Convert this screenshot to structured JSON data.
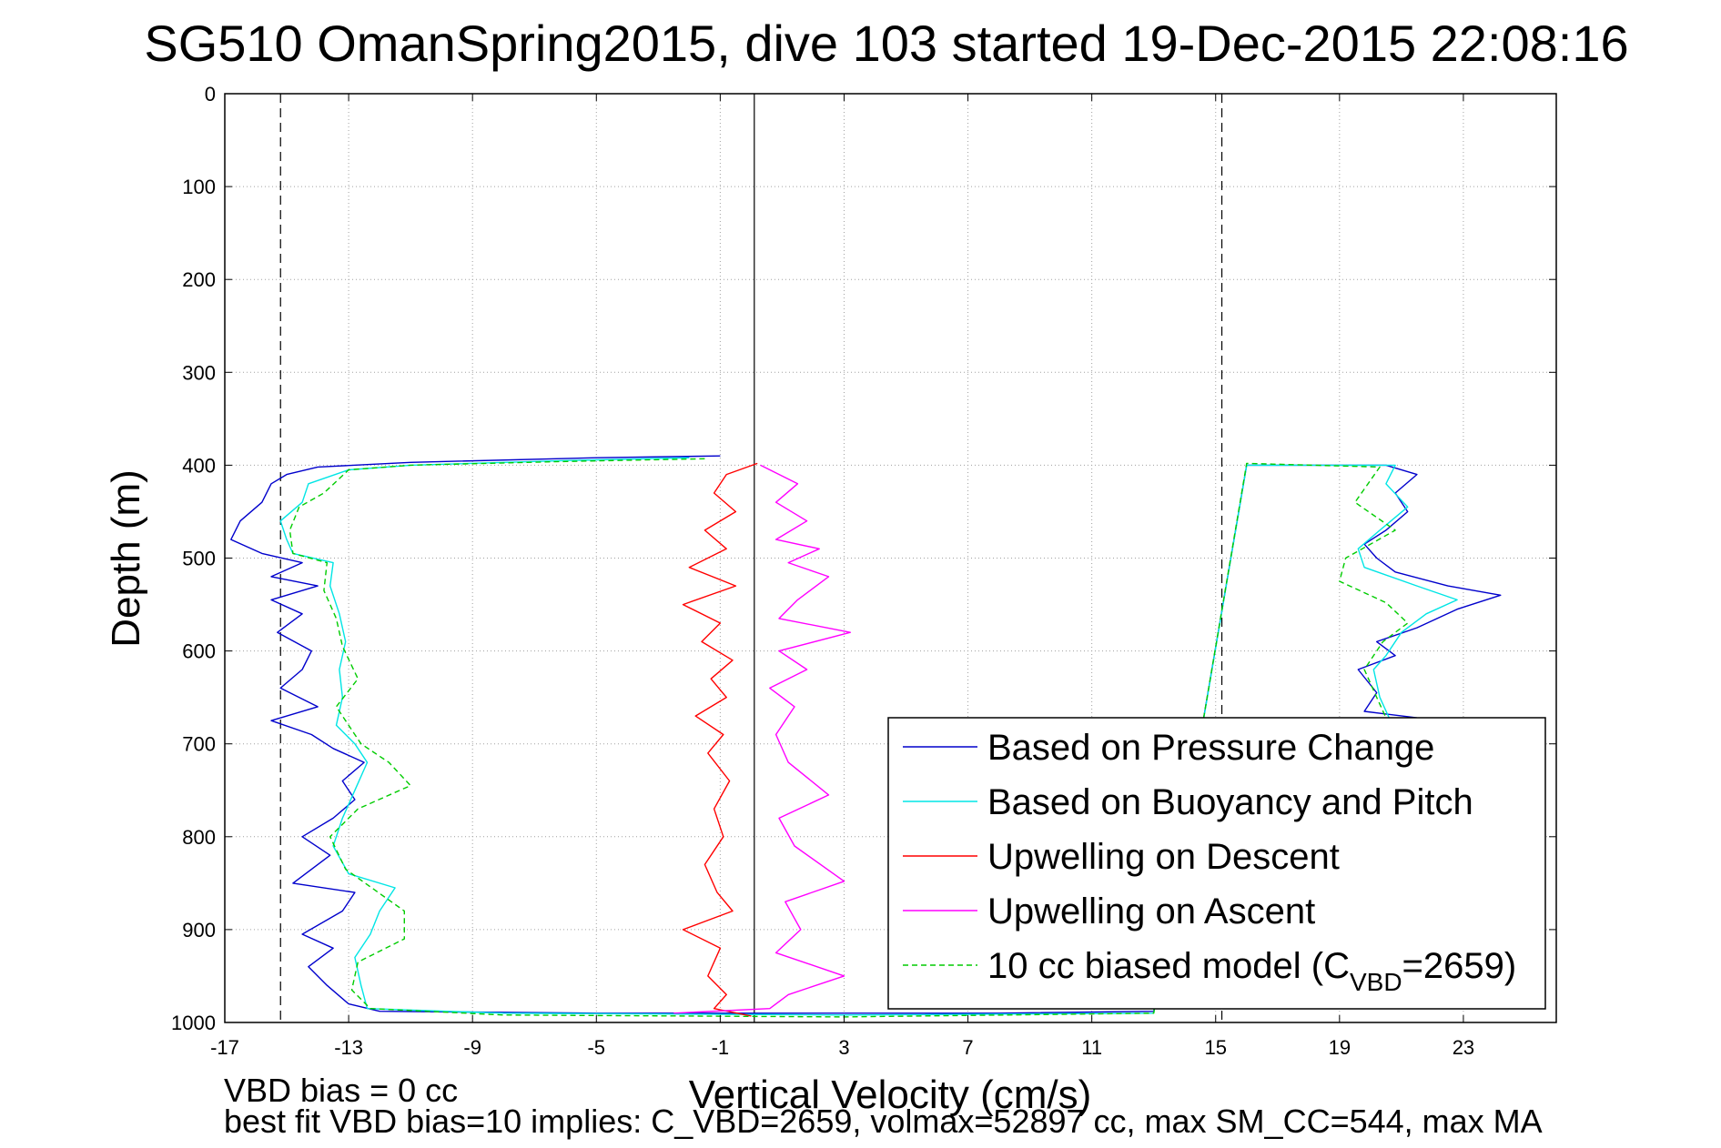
{
  "chart_data": {
    "type": "line",
    "title": "SG510 OmanSpring2015, dive 103 started 19-Dec-2015 22:08:16",
    "xlabel": "Vertical Velocity (cm/s)",
    "ylabel": "Depth (m)",
    "xlim": [
      -17,
      26
    ],
    "ylim": [
      0,
      1000
    ],
    "y_reversed": true,
    "xticks": [
      -17,
      -13,
      -9,
      -5,
      -1,
      3,
      7,
      11,
      15,
      19,
      23
    ],
    "yticks": [
      0,
      100,
      200,
      300,
      400,
      500,
      600,
      700,
      800,
      900,
      1000
    ],
    "grid": true,
    "legend_position": "lower-right",
    "reference_lines": [
      {
        "x": -15.2,
        "style": "dashed"
      },
      {
        "x": 0.1,
        "style": "solid"
      },
      {
        "x": 15.2,
        "style": "dashed"
      }
    ],
    "series": [
      {
        "name": "Based on Pressure Change",
        "color": "#0000cc",
        "style": "solid",
        "points": [
          [
            -1,
            390
          ],
          [
            -5,
            392
          ],
          [
            -11,
            397
          ],
          [
            -14,
            402
          ],
          [
            -15,
            410
          ],
          [
            -15.5,
            420
          ],
          [
            -15.8,
            440
          ],
          [
            -16.5,
            460
          ],
          [
            -16.8,
            480
          ],
          [
            -15.8,
            495
          ],
          [
            -14.5,
            505
          ],
          [
            -15.5,
            520
          ],
          [
            -14,
            530
          ],
          [
            -15.5,
            545
          ],
          [
            -14.5,
            560
          ],
          [
            -15.3,
            580
          ],
          [
            -14.2,
            600
          ],
          [
            -14.5,
            620
          ],
          [
            -15.2,
            640
          ],
          [
            -14,
            660
          ],
          [
            -15.5,
            675
          ],
          [
            -14.2,
            690
          ],
          [
            -13.5,
            705
          ],
          [
            -12.5,
            720
          ],
          [
            -13.2,
            740
          ],
          [
            -12.8,
            760
          ],
          [
            -13.5,
            780
          ],
          [
            -14.5,
            800
          ],
          [
            -13.6,
            820
          ],
          [
            -14.8,
            850
          ],
          [
            -12.8,
            860
          ],
          [
            -13.2,
            880
          ],
          [
            -14.5,
            905
          ],
          [
            -13.5,
            920
          ],
          [
            -14.3,
            940
          ],
          [
            -13.7,
            960
          ],
          [
            -13,
            980
          ],
          [
            -12,
            988
          ],
          [
            -5,
            990
          ],
          [
            8,
            990
          ],
          [
            13,
            988
          ],
          [
            16,
            400
          ],
          [
            20.5,
            400
          ],
          [
            21.5,
            410
          ],
          [
            20.8,
            430
          ],
          [
            21.2,
            450
          ],
          [
            20.5,
            470
          ],
          [
            19.8,
            485
          ],
          [
            20.2,
            500
          ],
          [
            20.8,
            515
          ],
          [
            22.5,
            530
          ],
          [
            24.2,
            540
          ],
          [
            22.8,
            555
          ],
          [
            21.5,
            575
          ],
          [
            20.2,
            590
          ],
          [
            20.8,
            605
          ],
          [
            19.6,
            620
          ],
          [
            20.2,
            645
          ],
          [
            19.8,
            665
          ],
          [
            21.5,
            672
          ]
        ]
      },
      {
        "name": "Based on Buoyancy and Pitch",
        "color": "#00e5e5",
        "style": "solid",
        "points": [
          [
            -2,
            392
          ],
          [
            -6,
            395
          ],
          [
            -11,
            400
          ],
          [
            -13,
            405
          ],
          [
            -14.3,
            420
          ],
          [
            -14.5,
            440
          ],
          [
            -15.2,
            460
          ],
          [
            -15,
            480
          ],
          [
            -14.8,
            495
          ],
          [
            -13.5,
            505
          ],
          [
            -13.6,
            530
          ],
          [
            -13.3,
            560
          ],
          [
            -13.1,
            590
          ],
          [
            -13.3,
            620
          ],
          [
            -13.2,
            650
          ],
          [
            -13.4,
            680
          ],
          [
            -12.8,
            700
          ],
          [
            -12.4,
            720
          ],
          [
            -12.8,
            750
          ],
          [
            -13.2,
            780
          ],
          [
            -13.5,
            810
          ],
          [
            -13,
            840
          ],
          [
            -11.5,
            855
          ],
          [
            -12,
            880
          ],
          [
            -12.3,
            905
          ],
          [
            -12.8,
            930
          ],
          [
            -12.6,
            960
          ],
          [
            -12.4,
            985
          ],
          [
            -8,
            990
          ],
          [
            3,
            992
          ],
          [
            13,
            990
          ],
          [
            16,
            400
          ],
          [
            20.8,
            400
          ],
          [
            20.5,
            420
          ],
          [
            21.2,
            445
          ],
          [
            20.3,
            470
          ],
          [
            19.6,
            490
          ],
          [
            19.8,
            510
          ],
          [
            21.5,
            530
          ],
          [
            22.8,
            545
          ],
          [
            21.8,
            560
          ],
          [
            21,
            580
          ],
          [
            20.5,
            605
          ],
          [
            20.1,
            620
          ],
          [
            20.3,
            650
          ],
          [
            20.6,
            672
          ]
        ]
      },
      {
        "name": "Upwelling on Descent",
        "color": "#ff0000",
        "style": "solid",
        "points": [
          [
            0.2,
            398
          ],
          [
            -0.8,
            410
          ],
          [
            -1.2,
            430
          ],
          [
            -0.5,
            450
          ],
          [
            -1.5,
            470
          ],
          [
            -0.8,
            490
          ],
          [
            -2,
            510
          ],
          [
            -0.5,
            530
          ],
          [
            -2.2,
            550
          ],
          [
            -1,
            570
          ],
          [
            -1.6,
            590
          ],
          [
            -0.6,
            610
          ],
          [
            -1.3,
            630
          ],
          [
            -0.8,
            650
          ],
          [
            -1.8,
            670
          ],
          [
            -0.9,
            690
          ],
          [
            -1.4,
            710
          ],
          [
            -0.7,
            740
          ],
          [
            -1.2,
            770
          ],
          [
            -0.9,
            800
          ],
          [
            -1.5,
            830
          ],
          [
            -1.1,
            860
          ],
          [
            -0.6,
            880
          ],
          [
            -2.2,
            900
          ],
          [
            -1,
            920
          ],
          [
            -1.4,
            950
          ],
          [
            -0.8,
            970
          ],
          [
            -1.2,
            985
          ],
          [
            0,
            993
          ]
        ]
      },
      {
        "name": "Upwelling on Ascent",
        "color": "#ff00ff",
        "style": "solid",
        "points": [
          [
            0.3,
            400
          ],
          [
            1.5,
            420
          ],
          [
            0.8,
            440
          ],
          [
            1.8,
            460
          ],
          [
            0.8,
            480
          ],
          [
            2.2,
            490
          ],
          [
            1.2,
            505
          ],
          [
            2.5,
            520
          ],
          [
            1.5,
            545
          ],
          [
            0.9,
            565
          ],
          [
            3.2,
            580
          ],
          [
            0.9,
            600
          ],
          [
            1.8,
            620
          ],
          [
            0.6,
            640
          ],
          [
            1.4,
            660
          ],
          [
            0.8,
            690
          ],
          [
            1.2,
            720
          ],
          [
            2.5,
            755
          ],
          [
            0.9,
            780
          ],
          [
            1.4,
            810
          ],
          [
            3,
            848
          ],
          [
            1.1,
            870
          ],
          [
            1.6,
            900
          ],
          [
            0.8,
            925
          ],
          [
            3,
            950
          ],
          [
            1.2,
            970
          ],
          [
            0.6,
            985
          ],
          [
            -2.5,
            990
          ]
        ]
      },
      {
        "name": "10 cc biased model (C",
        "name_sub": "VBD",
        "name_suffix": "=2659)",
        "color": "#00cc00",
        "style": "dashed",
        "points": [
          [
            -1.5,
            393
          ],
          [
            -6,
            396
          ],
          [
            -11,
            400
          ],
          [
            -13,
            405
          ],
          [
            -13.8,
            430
          ],
          [
            -14.6,
            445
          ],
          [
            -14.9,
            470
          ],
          [
            -14.8,
            495
          ],
          [
            -13.7,
            505
          ],
          [
            -13.8,
            535
          ],
          [
            -13.4,
            565
          ],
          [
            -13.2,
            595
          ],
          [
            -12.7,
            630
          ],
          [
            -13.4,
            660
          ],
          [
            -12.6,
            700
          ],
          [
            -11.7,
            720
          ],
          [
            -11,
            745
          ],
          [
            -12.7,
            770
          ],
          [
            -13.6,
            800
          ],
          [
            -13.1,
            835
          ],
          [
            -11.2,
            880
          ],
          [
            -11.2,
            910
          ],
          [
            -12.7,
            935
          ],
          [
            -12.9,
            965
          ],
          [
            -12.3,
            985
          ],
          [
            -8,
            992
          ],
          [
            3,
            994
          ],
          [
            13,
            990
          ],
          [
            16,
            398
          ],
          [
            20.3,
            402
          ],
          [
            19.5,
            440
          ],
          [
            20.8,
            470
          ],
          [
            19.2,
            500
          ],
          [
            19,
            525
          ],
          [
            20.5,
            548
          ],
          [
            21.2,
            570
          ],
          [
            20.4,
            590
          ],
          [
            19.8,
            620
          ],
          [
            20.2,
            650
          ],
          [
            20.5,
            672
          ]
        ]
      }
    ]
  },
  "footer": {
    "line1": "VBD bias = 0 cc",
    "line2": "best fit VBD bias=10 implies: C_VBD=2659, volmax=52897 cc, max SM_CC=544, max MA"
  }
}
